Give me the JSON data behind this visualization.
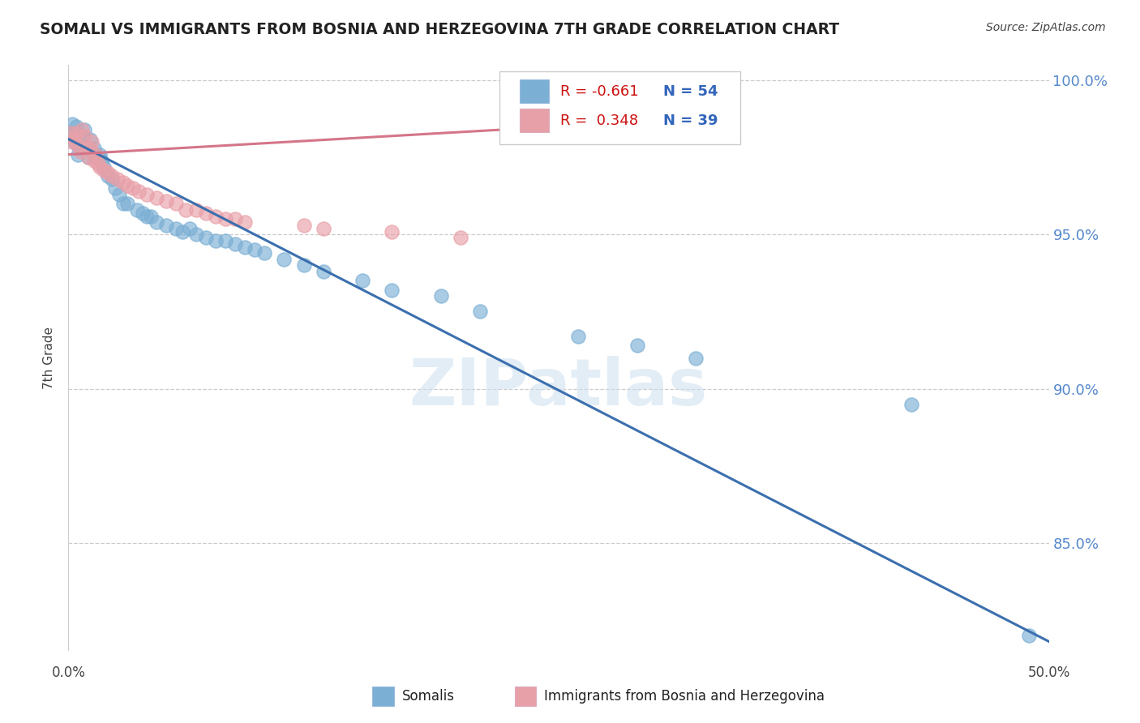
{
  "title": "SOMALI VS IMMIGRANTS FROM BOSNIA AND HERZEGOVINA 7TH GRADE CORRELATION CHART",
  "source": "Source: ZipAtlas.com",
  "ylabel": "7th Grade",
  "blue_color": "#7bafd4",
  "pink_color": "#e8a0a8",
  "blue_line_color": "#3b6fae",
  "pink_line_color": "#d4758a",
  "background_color": "#ffffff",
  "grid_color": "#cccccc",
  "blue_x": [
    0.001,
    0.002,
    0.003,
    0.004,
    0.005,
    0.005,
    0.006,
    0.007,
    0.008,
    0.009,
    0.01,
    0.011,
    0.012,
    0.013,
    0.014,
    0.015,
    0.016,
    0.017,
    0.018,
    0.02,
    0.022,
    0.024,
    0.026,
    0.028,
    0.03,
    0.035,
    0.038,
    0.04,
    0.042,
    0.045,
    0.05,
    0.055,
    0.058,
    0.062,
    0.065,
    0.07,
    0.075,
    0.08,
    0.085,
    0.09,
    0.095,
    0.1,
    0.11,
    0.12,
    0.13,
    0.15,
    0.165,
    0.19,
    0.21,
    0.26,
    0.29,
    0.32,
    0.43,
    0.49
  ],
  "blue_y": [
    0.983,
    0.986,
    0.98,
    0.985,
    0.979,
    0.976,
    0.978,
    0.982,
    0.984,
    0.978,
    0.975,
    0.981,
    0.977,
    0.978,
    0.976,
    0.975,
    0.976,
    0.974,
    0.972,
    0.969,
    0.968,
    0.965,
    0.963,
    0.96,
    0.96,
    0.958,
    0.957,
    0.956,
    0.956,
    0.954,
    0.953,
    0.952,
    0.951,
    0.952,
    0.95,
    0.949,
    0.948,
    0.948,
    0.947,
    0.946,
    0.945,
    0.944,
    0.942,
    0.94,
    0.938,
    0.935,
    0.932,
    0.93,
    0.925,
    0.917,
    0.914,
    0.91,
    0.895,
    0.82
  ],
  "pink_x": [
    0.001,
    0.002,
    0.003,
    0.004,
    0.005,
    0.006,
    0.007,
    0.008,
    0.009,
    0.01,
    0.011,
    0.012,
    0.013,
    0.014,
    0.015,
    0.016,
    0.018,
    0.02,
    0.022,
    0.025,
    0.028,
    0.03,
    0.033,
    0.036,
    0.04,
    0.045,
    0.05,
    0.055,
    0.06,
    0.065,
    0.07,
    0.075,
    0.08,
    0.085,
    0.09,
    0.12,
    0.13,
    0.165,
    0.2
  ],
  "pink_y": [
    0.983,
    0.98,
    0.981,
    0.983,
    0.979,
    0.977,
    0.984,
    0.982,
    0.978,
    0.975,
    0.978,
    0.98,
    0.974,
    0.976,
    0.973,
    0.972,
    0.971,
    0.97,
    0.969,
    0.968,
    0.967,
    0.966,
    0.965,
    0.964,
    0.963,
    0.962,
    0.961,
    0.96,
    0.958,
    0.958,
    0.957,
    0.956,
    0.955,
    0.955,
    0.954,
    0.953,
    0.952,
    0.951,
    0.949
  ],
  "blue_line_x": [
    0.0,
    0.5
  ],
  "blue_line_y": [
    0.981,
    0.818
  ],
  "pink_line_x": [
    0.0,
    0.22
  ],
  "pink_line_y": [
    0.976,
    0.984
  ],
  "xlim": [
    0.0,
    0.5
  ],
  "ylim": [
    0.815,
    1.005
  ],
  "y_tick_positions": [
    0.85,
    0.9,
    0.95,
    1.0
  ],
  "y_tick_labels": [
    "85.0%",
    "90.0%",
    "95.0%",
    "100.0%"
  ],
  "x_tick_positions": [
    0.0,
    0.1,
    0.2,
    0.3,
    0.4,
    0.5
  ]
}
